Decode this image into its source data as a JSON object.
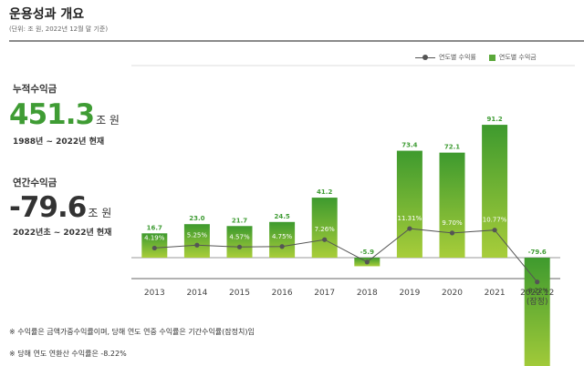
{
  "header": {
    "title": "운용성과 개요",
    "unit_note": "(단위: 조 원, 2022년 12월 말 기준)"
  },
  "summary": {
    "cumulative": {
      "label": "누적수익금",
      "value": "451.3",
      "unit": "조 원",
      "period": "1988년 ~ 2022년 현재"
    },
    "annual": {
      "label": "연간수익금",
      "value": "-79.6",
      "unit": "조 원",
      "period": "2022년초 ~ 2022년 현재"
    }
  },
  "legend": {
    "line_label": "연도별 수익률",
    "bar_label": "연도별 수익금"
  },
  "colors": {
    "bar_top": "#3e9a2e",
    "bar_bottom": "#a8cd3a",
    "accent": "#3f9c34",
    "line": "#555555"
  },
  "chart_data": {
    "type": "bar",
    "categories": [
      "2013",
      "2014",
      "2015",
      "2016",
      "2017",
      "2018",
      "2019",
      "2020",
      "2021",
      "2022.12\n(잠정)"
    ],
    "series": [
      {
        "name": "연도별 수익금",
        "type": "bar",
        "values": [
          16.7,
          23.0,
          21.7,
          24.5,
          41.2,
          -5.9,
          73.4,
          72.1,
          91.2,
          -79.6
        ],
        "labels": [
          "16.7",
          "23.0",
          "21.7",
          "24.5",
          "41.2",
          "-5.9",
          "73.4",
          "72.1",
          "91.2",
          "-79.6"
        ]
      },
      {
        "name": "연도별 수익률",
        "type": "line",
        "values": [
          4.19,
          5.25,
          4.57,
          4.75,
          7.26,
          -0.92,
          11.31,
          9.7,
          10.77,
          -8.22
        ],
        "labels": [
          "4.19%",
          "5.25%",
          "4.57%",
          "4.75%",
          "7.26%",
          "-0.92%",
          "11.31%",
          "9.70%",
          "10.77%",
          "-8.22%"
        ]
      }
    ],
    "ylim": [
      -80,
      100
    ],
    "legend_position": "top-right",
    "grid": false
  },
  "footnotes": [
    "※ 수익률은 금액가중수익률이며, 당해 연도 연중 수익률은 기간수익률(잠정치)임",
    "※ 당해 연도 연환산 수익률은 -8.22%"
  ]
}
